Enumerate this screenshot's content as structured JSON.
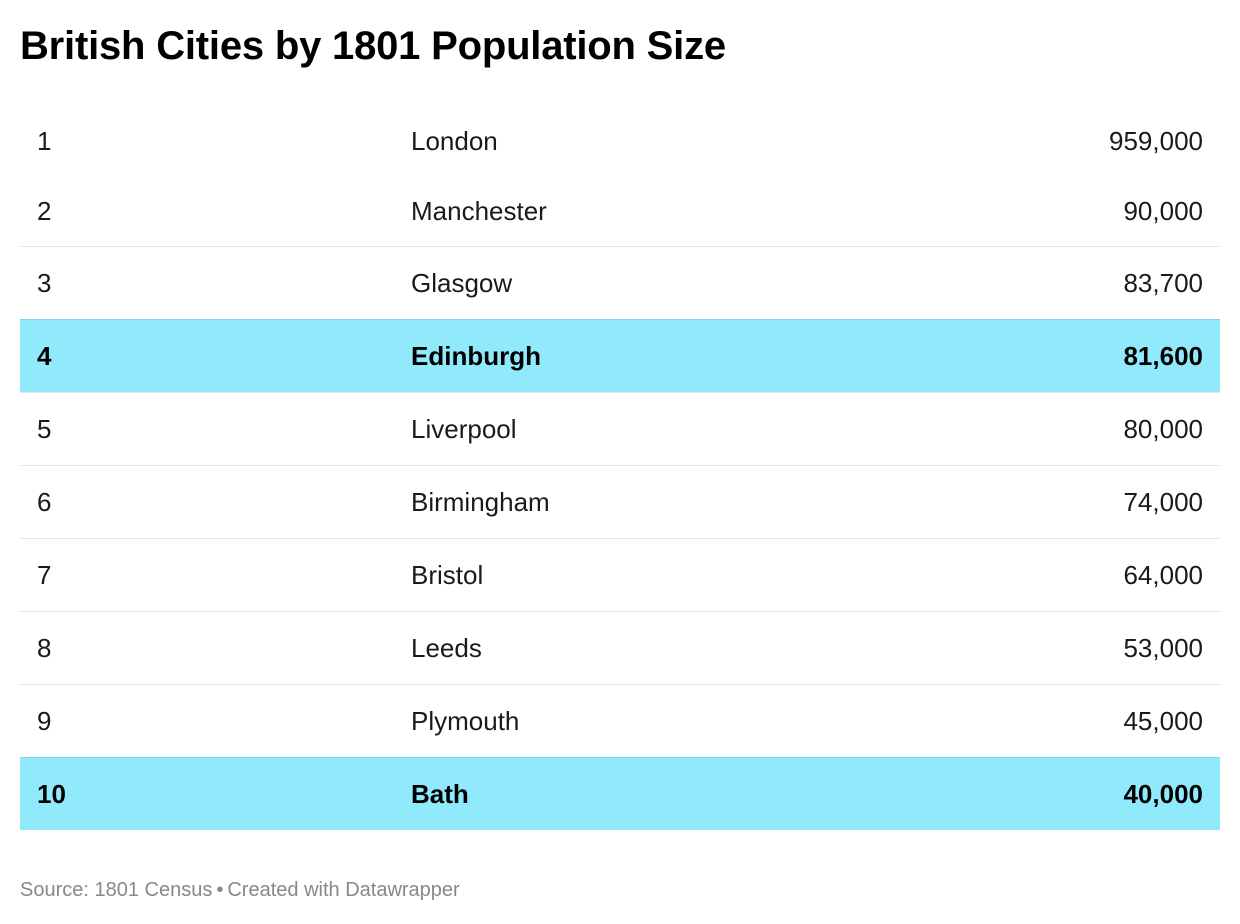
{
  "title": "British Cities by 1801 Population Size",
  "footer": {
    "source": "Source: 1801 Census",
    "separator": "•",
    "credit": "Created with Datawrapper"
  },
  "colors": {
    "highlight_row": "#91eafc",
    "footer_text": "#888888"
  },
  "chart_data": {
    "type": "table",
    "title": "British Cities by 1801 Population Size",
    "columns": [
      "rank",
      "city",
      "population"
    ],
    "highlighted_ranks": [
      "4",
      "10"
    ],
    "rows": [
      {
        "rank": "1",
        "city": "London",
        "population": "959,000",
        "highlight": false
      },
      {
        "rank": "2",
        "city": "Manchester",
        "population": "90,000",
        "highlight": false
      },
      {
        "rank": "3",
        "city": "Glasgow",
        "population": "83,700",
        "highlight": false
      },
      {
        "rank": "4",
        "city": "Edinburgh",
        "population": "81,600",
        "highlight": true
      },
      {
        "rank": "5",
        "city": "Liverpool",
        "population": "80,000",
        "highlight": false
      },
      {
        "rank": "6",
        "city": "Birmingham",
        "population": "74,000",
        "highlight": false
      },
      {
        "rank": "7",
        "city": "Bristol",
        "population": "64,000",
        "highlight": false
      },
      {
        "rank": "8",
        "city": "Leeds",
        "population": "53,000",
        "highlight": false
      },
      {
        "rank": "9",
        "city": "Plymouth",
        "population": "45,000",
        "highlight": false
      },
      {
        "rank": "10",
        "city": "Bath",
        "population": "40,000",
        "highlight": true
      }
    ]
  }
}
